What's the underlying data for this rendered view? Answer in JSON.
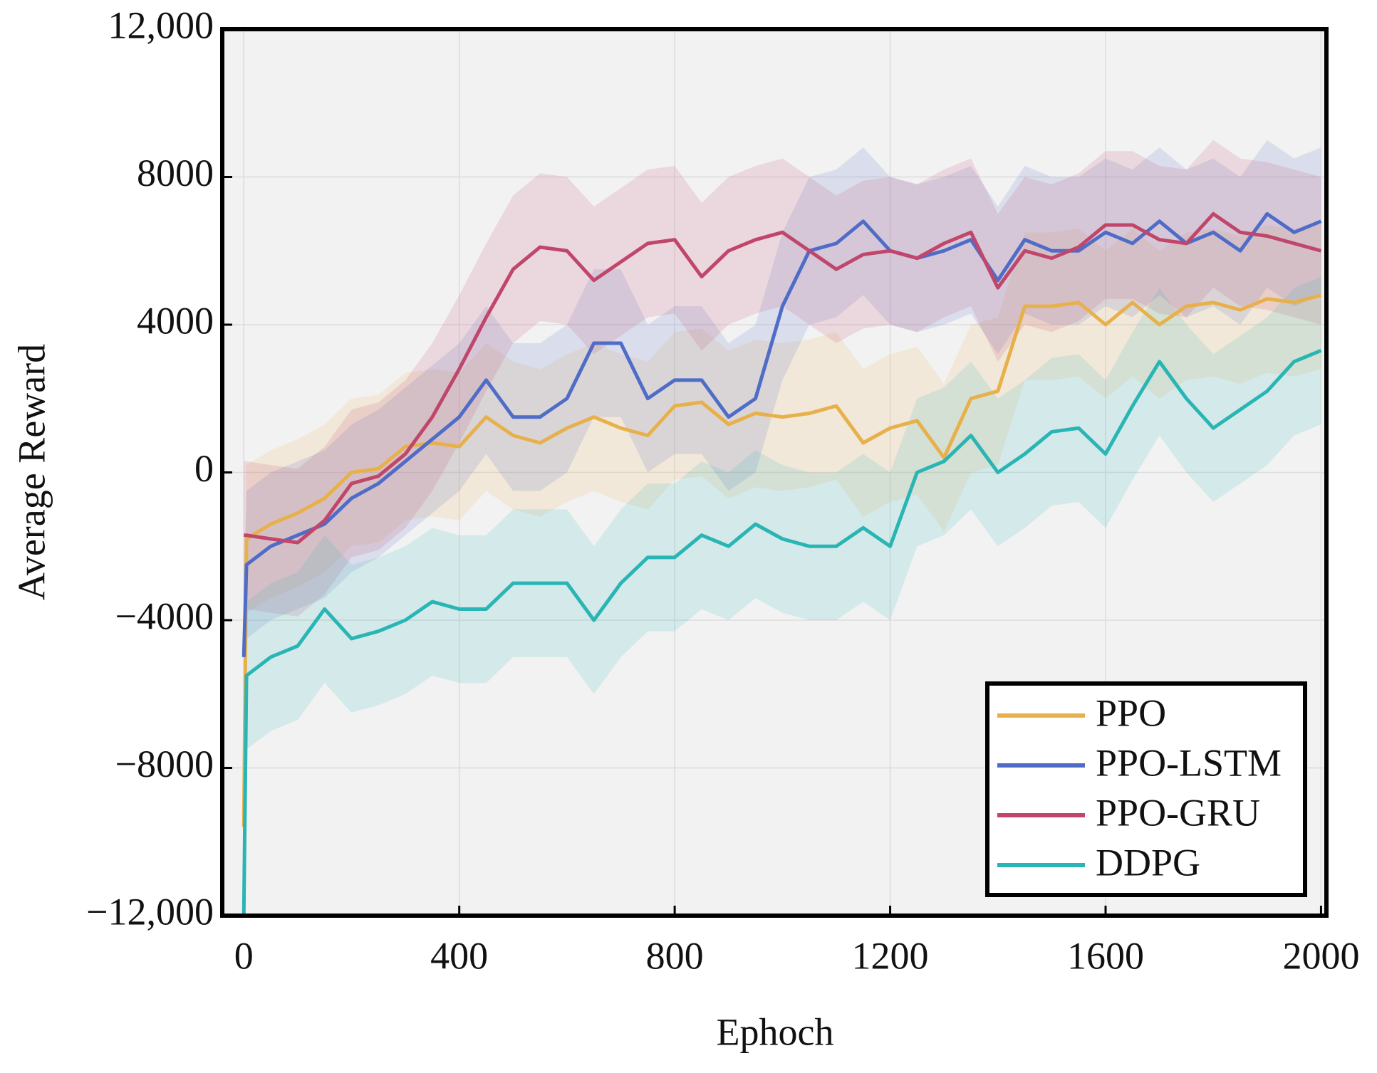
{
  "chart_data": {
    "type": "line",
    "xlabel": "Ephoch",
    "ylabel": "Average Reward",
    "x": [
      0,
      5,
      50,
      100,
      150,
      200,
      250,
      300,
      350,
      400,
      450,
      500,
      550,
      600,
      650,
      700,
      750,
      800,
      850,
      900,
      950,
      1000,
      1050,
      1100,
      1150,
      1200,
      1250,
      1300,
      1350,
      1400,
      1450,
      1500,
      1550,
      1600,
      1650,
      1700,
      1750,
      1800,
      1850,
      1900,
      1950,
      2000
    ],
    "series": [
      {
        "name": "PPO",
        "color": "#e8b04a",
        "spread": 2000,
        "values": [
          -9600,
          -1800,
          -1400,
          -1100,
          -700,
          0,
          100,
          700,
          800,
          700,
          1500,
          1000,
          800,
          1200,
          1500,
          1200,
          1000,
          1800,
          1900,
          1300,
          1600,
          1500,
          1600,
          1800,
          800,
          1200,
          1400,
          400,
          2000,
          2200,
          4500,
          4500,
          4600,
          4000,
          4600,
          4000,
          4500,
          4600,
          4400,
          4700,
          4600,
          4800
        ]
      },
      {
        "name": "PPO-LSTM",
        "color": "#4f6cc7",
        "spread": 2000,
        "values": [
          -5000,
          -2500,
          -2000,
          -1700,
          -1400,
          -700,
          -300,
          300,
          900,
          1500,
          2500,
          1500,
          1500,
          2000,
          3500,
          3500,
          2000,
          2500,
          2500,
          1500,
          2000,
          4500,
          6000,
          6200,
          6800,
          6000,
          5800,
          6000,
          6300,
          5200,
          6300,
          6000,
          6000,
          6500,
          6200,
          6800,
          6200,
          6500,
          6000,
          7000,
          6500,
          6800
        ]
      },
      {
        "name": "PPO-GRU",
        "color": "#c0466b",
        "spread": 2000,
        "values": [
          -1700,
          -1700,
          -1800,
          -1900,
          -1300,
          -300,
          -100,
          500,
          1500,
          2800,
          4200,
          5500,
          6100,
          6000,
          5200,
          5700,
          6200,
          6300,
          5300,
          6000,
          6300,
          6500,
          6000,
          5500,
          5900,
          6000,
          5800,
          6200,
          6500,
          5000,
          6000,
          5800,
          6100,
          6700,
          6700,
          6300,
          6200,
          7000,
          6500,
          6400,
          6200,
          6000
        ]
      },
      {
        "name": "DDPG",
        "color": "#2ab5b5",
        "spread": 2000,
        "values": [
          -12000,
          -5500,
          -5000,
          -4700,
          -3700,
          -4500,
          -4300,
          -4000,
          -3500,
          -3700,
          -3700,
          -3000,
          -3000,
          -3000,
          -4000,
          -3000,
          -2300,
          -2300,
          -1700,
          -2000,
          -1400,
          -1800,
          -2000,
          -2000,
          -1500,
          -2000,
          0,
          300,
          1000,
          0,
          500,
          1100,
          1200,
          500,
          1800,
          3000,
          2000,
          1200,
          1700,
          2200,
          3000,
          3300
        ]
      }
    ],
    "xlim": [
      -40,
      2010
    ],
    "ylim": [
      -12000,
      12000
    ],
    "xticks": [
      0,
      400,
      800,
      1200,
      1600,
      2000
    ],
    "yticks": [
      {
        "value": -12000,
        "label": "−12,000"
      },
      {
        "value": -8000,
        "label": "−8000"
      },
      {
        "value": -4000,
        "label": "−4000"
      },
      0,
      4000,
      8000,
      {
        "value": 12000,
        "label": "12,000"
      }
    ],
    "grid": true,
    "legend": "lower right"
  }
}
